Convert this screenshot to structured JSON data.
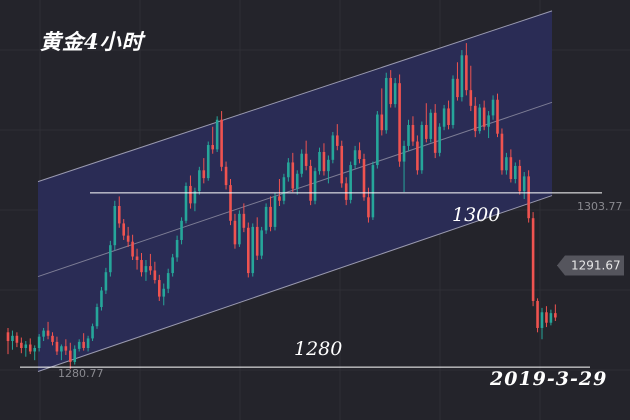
{
  "title": "黄金4小时",
  "date": "2019-3-29",
  "chart_data": {
    "type": "candlestick",
    "instrument": "gold",
    "timeframe": "4H",
    "ylim": [
      1276,
      1321
    ],
    "levels": [
      {
        "label": "1300",
        "value": 1300.0
      },
      {
        "label": "1280",
        "value": 1280.0
      }
    ],
    "price_labels": {
      "high_tick": "1303.77",
      "low_tick": "1280.77",
      "current": "1291.67"
    },
    "colors": {
      "up": "#26a69a",
      "down": "#ef5350",
      "channel_fill": "#2b2d57",
      "channel_line": "#9a9ab0",
      "level_line": "#ffffff"
    },
    "channel": {
      "upper_start": 1301.3,
      "upper_end": 1320.9,
      "mid_start": 1290.4,
      "mid_end": 1310.4,
      "lower_start": 1279.5,
      "lower_end": 1299.7
    },
    "candles": [
      [
        1284.0,
        1284.5,
        1281.5,
        1283.0
      ],
      [
        1283.0,
        1284.2,
        1282.0,
        1283.6
      ],
      [
        1283.6,
        1284.0,
        1282.3,
        1282.8
      ],
      [
        1282.8,
        1283.4,
        1281.6,
        1282.2
      ],
      [
        1282.2,
        1283.0,
        1281.2,
        1282.6
      ],
      [
        1282.6,
        1283.3,
        1281.5,
        1281.8
      ],
      [
        1281.8,
        1282.5,
        1280.8,
        1282.2
      ],
      [
        1282.2,
        1283.8,
        1281.8,
        1283.5
      ],
      [
        1283.5,
        1284.5,
        1283.0,
        1284.2
      ],
      [
        1284.2,
        1285.2,
        1283.2,
        1283.6
      ],
      [
        1283.6,
        1284.0,
        1282.5,
        1282.9
      ],
      [
        1282.9,
        1283.5,
        1281.4,
        1281.8
      ],
      [
        1281.8,
        1282.6,
        1280.8,
        1282.4
      ],
      [
        1282.4,
        1283.2,
        1281.4,
        1281.9
      ],
      [
        1281.9,
        1282.8,
        1279.8,
        1280.6
      ],
      [
        1280.6,
        1282.5,
        1280.3,
        1282.1
      ],
      [
        1282.1,
        1283.2,
        1281.8,
        1282.9
      ],
      [
        1282.9,
        1283.9,
        1281.9,
        1282.2
      ],
      [
        1282.2,
        1283.6,
        1281.8,
        1283.3
      ],
      [
        1283.3,
        1285.0,
        1283.0,
        1284.7
      ],
      [
        1284.7,
        1287.3,
        1284.4,
        1286.9
      ],
      [
        1286.9,
        1289.2,
        1286.5,
        1288.8
      ],
      [
        1288.8,
        1291.4,
        1288.4,
        1290.9
      ],
      [
        1290.9,
        1294.5,
        1290.4,
        1294.0
      ],
      [
        1294.0,
        1299.1,
        1293.4,
        1298.5
      ],
      [
        1298.5,
        1299.6,
        1296.0,
        1296.5
      ],
      [
        1296.5,
        1297.0,
        1294.6,
        1295.1
      ],
      [
        1295.1,
        1296.1,
        1293.8,
        1294.4
      ],
      [
        1294.4,
        1295.2,
        1292.3,
        1292.7
      ],
      [
        1292.7,
        1293.6,
        1291.2,
        1292.3
      ],
      [
        1292.3,
        1293.1,
        1290.4,
        1290.9
      ],
      [
        1290.9,
        1292.3,
        1289.9,
        1291.6
      ],
      [
        1291.6,
        1293.0,
        1290.6,
        1291.1
      ],
      [
        1291.1,
        1292.1,
        1289.6,
        1290.0
      ],
      [
        1290.0,
        1290.6,
        1287.6,
        1288.1
      ],
      [
        1288.1,
        1289.6,
        1287.1,
        1289.0
      ],
      [
        1289.0,
        1291.3,
        1288.5,
        1290.8
      ],
      [
        1290.8,
        1293.0,
        1290.4,
        1292.6
      ],
      [
        1292.6,
        1295.1,
        1292.1,
        1294.6
      ],
      [
        1294.6,
        1297.2,
        1294.1,
        1296.8
      ],
      [
        1296.8,
        1301.2,
        1296.5,
        1300.8
      ],
      [
        1300.8,
        1302.0,
        1298.2,
        1298.8
      ],
      [
        1298.8,
        1300.6,
        1297.9,
        1300.2
      ],
      [
        1300.2,
        1303.0,
        1299.8,
        1302.6
      ],
      [
        1302.6,
        1304.0,
        1301.1,
        1301.7
      ],
      [
        1301.7,
        1305.9,
        1301.4,
        1305.5
      ],
      [
        1305.5,
        1307.6,
        1304.5,
        1305.0
      ],
      [
        1305.0,
        1308.8,
        1304.7,
        1308.4
      ],
      [
        1308.4,
        1309.4,
        1302.5,
        1303.0
      ],
      [
        1303.0,
        1303.6,
        1300.4,
        1300.9
      ],
      [
        1300.9,
        1301.6,
        1296.3,
        1296.8
      ],
      [
        1296.8,
        1297.6,
        1293.6,
        1294.1
      ],
      [
        1294.1,
        1298.0,
        1293.8,
        1297.6
      ],
      [
        1297.6,
        1298.8,
        1295.5,
        1296.0
      ],
      [
        1296.0,
        1296.6,
        1290.3,
        1290.8
      ],
      [
        1290.8,
        1296.5,
        1290.4,
        1296.1
      ],
      [
        1296.1,
        1297.2,
        1292.3,
        1292.8
      ],
      [
        1292.8,
        1296.1,
        1292.4,
        1295.7
      ],
      [
        1295.7,
        1298.8,
        1295.3,
        1298.4
      ],
      [
        1298.4,
        1299.6,
        1295.6,
        1296.1
      ],
      [
        1296.1,
        1300.0,
        1295.7,
        1299.6
      ],
      [
        1299.6,
        1301.6,
        1298.5,
        1299.1
      ],
      [
        1299.1,
        1302.2,
        1298.7,
        1301.8
      ],
      [
        1301.8,
        1304.0,
        1301.3,
        1303.5
      ],
      [
        1303.5,
        1304.6,
        1300.1,
        1300.5
      ],
      [
        1300.5,
        1302.6,
        1299.8,
        1302.2
      ],
      [
        1302.2,
        1305.0,
        1301.8,
        1304.5
      ],
      [
        1304.5,
        1306.0,
        1302.6,
        1303.1
      ],
      [
        1303.1,
        1303.8,
        1298.6,
        1299.1
      ],
      [
        1299.1,
        1302.9,
        1298.7,
        1302.5
      ],
      [
        1302.5,
        1305.2,
        1302.1,
        1304.7
      ],
      [
        1304.7,
        1305.7,
        1302.0,
        1302.5
      ],
      [
        1302.5,
        1304.3,
        1301.1,
        1303.8
      ],
      [
        1303.8,
        1307.0,
        1303.4,
        1306.6
      ],
      [
        1306.6,
        1307.9,
        1304.9,
        1305.4
      ],
      [
        1305.4,
        1306.0,
        1300.6,
        1301.1
      ],
      [
        1301.1,
        1301.8,
        1298.6,
        1299.2
      ],
      [
        1299.2,
        1303.6,
        1298.8,
        1303.2
      ],
      [
        1303.2,
        1305.4,
        1302.8,
        1304.9
      ],
      [
        1304.9,
        1305.8,
        1303.4,
        1303.9
      ],
      [
        1303.9,
        1304.5,
        1299.1,
        1299.5
      ],
      [
        1299.5,
        1300.6,
        1296.6,
        1297.2
      ],
      [
        1297.2,
        1303.6,
        1296.9,
        1303.2
      ],
      [
        1303.2,
        1309.4,
        1302.8,
        1309.0
      ],
      [
        1309.0,
        1312.0,
        1306.6,
        1307.2
      ],
      [
        1307.2,
        1313.8,
        1306.8,
        1313.2
      ],
      [
        1313.2,
        1314.1,
        1309.8,
        1310.2
      ],
      [
        1310.2,
        1313.2,
        1309.8,
        1312.6
      ],
      [
        1312.6,
        1313.6,
        1303.0,
        1303.6
      ],
      [
        1303.6,
        1306.0,
        1300.1,
        1305.4
      ],
      [
        1305.4,
        1308.4,
        1304.8,
        1307.8
      ],
      [
        1307.8,
        1308.8,
        1305.4,
        1305.9
      ],
      [
        1305.9,
        1306.6,
        1302.1,
        1302.6
      ],
      [
        1302.6,
        1308.2,
        1302.2,
        1307.8
      ],
      [
        1307.8,
        1310.3,
        1305.8,
        1306.2
      ],
      [
        1306.2,
        1309.6,
        1305.8,
        1309.2
      ],
      [
        1309.2,
        1310.2,
        1304.0,
        1304.6
      ],
      [
        1304.6,
        1308.0,
        1304.2,
        1307.6
      ],
      [
        1307.6,
        1310.1,
        1307.2,
        1309.7
      ],
      [
        1309.7,
        1310.6,
        1307.3,
        1307.8
      ],
      [
        1307.8,
        1313.5,
        1307.4,
        1313.1
      ],
      [
        1313.1,
        1315.0,
        1310.6,
        1311.0
      ],
      [
        1311.0,
        1316.4,
        1310.5,
        1315.8
      ],
      [
        1315.8,
        1317.2,
        1311.2,
        1311.8
      ],
      [
        1311.8,
        1314.6,
        1309.4,
        1310.0
      ],
      [
        1310.0,
        1311.0,
        1306.4,
        1307.1
      ],
      [
        1307.1,
        1310.2,
        1306.8,
        1309.8
      ],
      [
        1309.8,
        1310.6,
        1307.2,
        1307.6
      ],
      [
        1307.6,
        1309.4,
        1306.3,
        1308.9
      ],
      [
        1308.9,
        1311.2,
        1308.4,
        1310.7
      ],
      [
        1310.7,
        1311.4,
        1306.4,
        1306.8
      ],
      [
        1306.8,
        1307.4,
        1302.1,
        1302.6
      ],
      [
        1302.6,
        1304.6,
        1302.1,
        1304.1
      ],
      [
        1304.1,
        1305.0,
        1301.2,
        1301.6
      ],
      [
        1301.6,
        1303.5,
        1301.1,
        1303.1
      ],
      [
        1303.1,
        1303.8,
        1299.8,
        1300.2
      ],
      [
        1300.2,
        1302.4,
        1299.3,
        1301.9
      ],
      [
        1301.9,
        1302.6,
        1296.6,
        1297.1
      ],
      [
        1297.1,
        1297.8,
        1287.0,
        1287.6
      ],
      [
        1287.6,
        1287.9,
        1284.0,
        1284.5
      ],
      [
        1284.5,
        1286.8,
        1283.2,
        1286.3
      ],
      [
        1286.3,
        1287.0,
        1284.6,
        1285.1
      ],
      [
        1285.1,
        1286.6,
        1284.8,
        1286.2
      ],
      [
        1286.2,
        1287.2,
        1285.3,
        1285.7
      ]
    ]
  }
}
